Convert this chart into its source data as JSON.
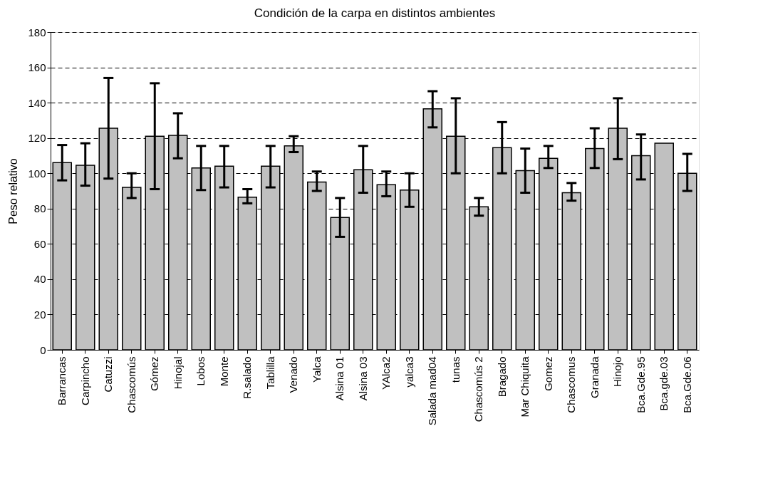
{
  "chart_data": {
    "type": "bar",
    "title": "Condición de la carpa en distintos ambientes",
    "ylabel": "Peso relativo",
    "categories": [
      "Barrancas",
      "Carpincho",
      "Catuzzi",
      "Chascomús",
      "Gómez",
      "Hinojal",
      "Lobos",
      "Monte",
      "R.salado",
      "Tablilla",
      "Venado",
      "Yalca",
      "Alsina 01",
      "Alsina 03",
      "YAlca2",
      "yalca3",
      "Salada mad04",
      "tunas",
      "Chascomús 2",
      "Bragado",
      "Mar Chiquita",
      "Gomez",
      "Chascomus",
      "Granada",
      "Hinojo",
      "Bca.Gde.95",
      "Bca.gde.03",
      "Bca.Gde.06"
    ],
    "values": [
      106,
      104.5,
      125.5,
      92,
      121,
      121.5,
      103,
      104,
      86.5,
      104,
      115.5,
      95,
      75,
      102,
      93.5,
      90.5,
      136.5,
      121,
      81,
      114.5,
      101.5,
      108.5,
      89,
      114,
      125.5,
      110,
      117,
      100
    ],
    "errors": [
      [
        96,
        116
      ],
      [
        93,
        117
      ],
      [
        97,
        154
      ],
      [
        86,
        100
      ],
      [
        91,
        151
      ],
      [
        108.5,
        134
      ],
      [
        90.5,
        115.5
      ],
      [
        92,
        115.5
      ],
      [
        83,
        91
      ],
      [
        92,
        115.5
      ],
      [
        112,
        121
      ],
      [
        90,
        101
      ],
      [
        64,
        86
      ],
      [
        89,
        115.5
      ],
      [
        87,
        101
      ],
      [
        81,
        100
      ],
      [
        126,
        146.5
      ],
      [
        100,
        142.5
      ],
      [
        76,
        86
      ],
      [
        100,
        129
      ],
      [
        89,
        114
      ],
      [
        103,
        115.5
      ],
      [
        84.5,
        94.5
      ],
      [
        103,
        125.5
      ],
      [
        108,
        142.5
      ],
      [
        96.5,
        122
      ],
      null,
      [
        90,
        111
      ]
    ],
    "color": "#c0c0c0",
    "ylim": [
      0,
      180
    ],
    "yticks": [
      0,
      20,
      40,
      60,
      80,
      100,
      120,
      140,
      160,
      180
    ],
    "grid": "y"
  }
}
